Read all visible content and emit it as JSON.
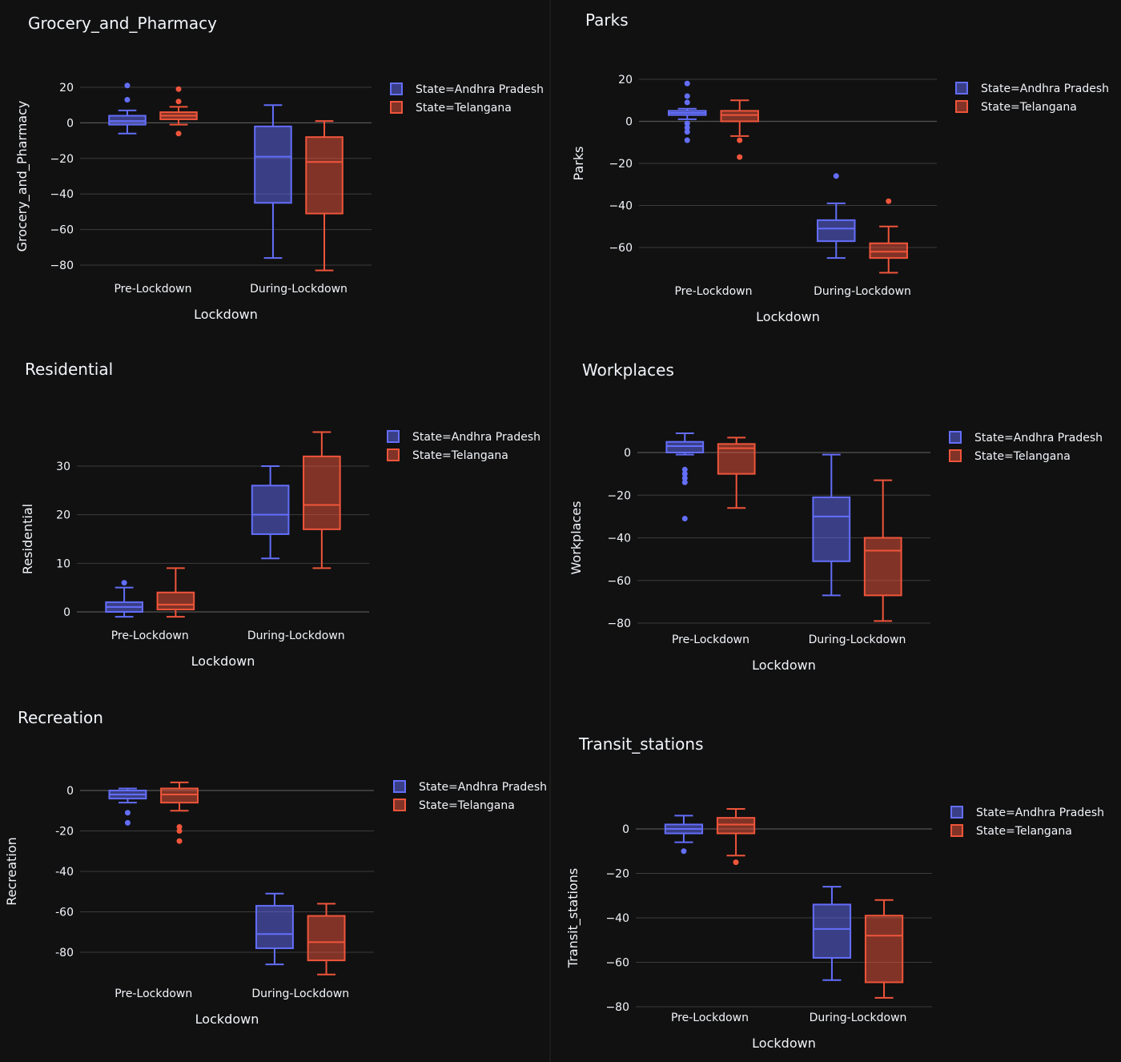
{
  "colors": {
    "background": "#111111",
    "andhra": "#636efa",
    "telangana": "#ef553b",
    "text": "#f2f5fa",
    "grid": "#3c3c3c"
  },
  "legend": [
    "State=Andhra Pradesh",
    "State=Telangana"
  ],
  "chart_data": [
    {
      "type": "box",
      "title": "Grocery_and_Pharmacy",
      "xlabel": "Lockdown",
      "ylabel": "Grocery_and_Pharmacy",
      "categories": [
        "Pre-Lockdown",
        "During-Lockdown"
      ],
      "ylim": [
        -84,
        24
      ],
      "yticks": [
        20,
        0,
        -20,
        -40,
        -60,
        -80
      ],
      "ytick_labels": [
        "20",
        "0",
        "−20",
        "−40",
        "−60",
        "−80"
      ],
      "series": [
        {
          "name": "State=Andhra Pradesh",
          "boxes": [
            {
              "lowerfence": -6,
              "q1": -1,
              "median": 1,
              "q3": 4,
              "upperfence": 7,
              "outliers": [
                13,
                21
              ]
            },
            {
              "lowerfence": -76,
              "q1": -45,
              "median": -19,
              "q3": -2,
              "upperfence": 10,
              "outliers": []
            }
          ]
        },
        {
          "name": "State=Telangana",
          "boxes": [
            {
              "lowerfence": -1,
              "q1": 2,
              "median": 4,
              "q3": 6,
              "upperfence": 9,
              "outliers": [
                -6,
                12,
                19
              ]
            },
            {
              "lowerfence": -83,
              "q1": -51,
              "median": -22,
              "q3": -8,
              "upperfence": 1,
              "outliers": []
            }
          ]
        }
      ]
    },
    {
      "type": "box",
      "title": "Parks",
      "xlabel": "Lockdown",
      "ylabel": "Parks",
      "categories": [
        "Pre-Lockdown",
        "During-Lockdown"
      ],
      "ylim": [
        -73,
        21
      ],
      "yticks": [
        20,
        0,
        -20,
        -40,
        -60
      ],
      "ytick_labels": [
        "20",
        "0",
        "−20",
        "−40",
        "−60"
      ],
      "series": [
        {
          "name": "State=Andhra Pradesh",
          "boxes": [
            {
              "lowerfence": 1,
              "q1": 3,
              "median": 4,
              "q3": 5,
              "upperfence": 6,
              "outliers": [
                18,
                12,
                9,
                -1,
                -3,
                -5,
                -9
              ]
            },
            {
              "lowerfence": -65,
              "q1": -57,
              "median": -51,
              "q3": -47,
              "upperfence": -39,
              "outliers": [
                -26
              ]
            }
          ]
        },
        {
          "name": "State=Telangana",
          "boxes": [
            {
              "lowerfence": -7,
              "q1": 0,
              "median": 3,
              "q3": 5,
              "upperfence": 10,
              "outliers": [
                -9,
                -17
              ]
            },
            {
              "lowerfence": -72,
              "q1": -65,
              "median": -62,
              "q3": -58,
              "upperfence": -50,
              "outliers": [
                -38
              ]
            }
          ]
        }
      ]
    },
    {
      "type": "box",
      "title": "Residential",
      "xlabel": "Lockdown",
      "ylabel": "Residential",
      "categories": [
        "Pre-Lockdown",
        "During-Lockdown"
      ],
      "ylim": [
        -2,
        39
      ],
      "yticks": [
        30,
        20,
        10,
        0
      ],
      "ytick_labels": [
        "30",
        "20",
        "10",
        "0"
      ],
      "series": [
        {
          "name": "State=Andhra Pradesh",
          "boxes": [
            {
              "lowerfence": -1,
              "q1": 0,
              "median": 1,
              "q3": 2,
              "upperfence": 5,
              "outliers": [
                6
              ]
            },
            {
              "lowerfence": 11,
              "q1": 16,
              "median": 20,
              "q3": 26,
              "upperfence": 30,
              "outliers": []
            }
          ]
        },
        {
          "name": "State=Telangana",
          "boxes": [
            {
              "lowerfence": -1,
              "q1": 0.5,
              "median": 1.5,
              "q3": 4,
              "upperfence": 9,
              "outliers": []
            },
            {
              "lowerfence": 9,
              "q1": 17,
              "median": 22,
              "q3": 32,
              "upperfence": 37,
              "outliers": []
            }
          ]
        }
      ]
    },
    {
      "type": "box",
      "title": "Workplaces",
      "xlabel": "Lockdown",
      "ylabel": "Workplaces",
      "categories": [
        "Pre-Lockdown",
        "During-Lockdown"
      ],
      "ylim": [
        -81,
        11
      ],
      "yticks": [
        0,
        -20,
        -40,
        -60,
        -80
      ],
      "ytick_labels": [
        "0",
        "−20",
        "−40",
        "−60",
        "−80"
      ],
      "series": [
        {
          "name": "State=Andhra Pradesh",
          "boxes": [
            {
              "lowerfence": -1,
              "q1": 0,
              "median": 3,
              "q3": 5,
              "upperfence": 9,
              "outliers": [
                -8,
                -10,
                -12,
                -14,
                -31
              ]
            },
            {
              "lowerfence": -67,
              "q1": -51,
              "median": -30,
              "q3": -21,
              "upperfence": -1,
              "outliers": []
            }
          ]
        },
        {
          "name": "State=Telangana",
          "boxes": [
            {
              "lowerfence": -26,
              "q1": -10,
              "median": 2,
              "q3": 4,
              "upperfence": 7,
              "outliers": []
            },
            {
              "lowerfence": -79,
              "q1": -67,
              "median": -46,
              "q3": -40,
              "upperfence": -13,
              "outliers": []
            }
          ]
        }
      ]
    },
    {
      "type": "box",
      "title": "Recreation",
      "xlabel": "Lockdown",
      "ylabel": "Recreation",
      "categories": [
        "Pre-Lockdown",
        "During-Lockdown"
      ],
      "ylim": [
        -93,
        7
      ],
      "yticks": [
        0,
        -20,
        -40,
        -60,
        -80
      ],
      "ytick_labels": [
        "0",
        "-20",
        "-40",
        "-60",
        "-80"
      ],
      "series": [
        {
          "name": "State=Andhra Pradesh",
          "boxes": [
            {
              "lowerfence": -6,
              "q1": -4,
              "median": -2,
              "q3": 0,
              "upperfence": 1,
              "outliers": [
                -11,
                -16
              ]
            },
            {
              "lowerfence": -86,
              "q1": -78,
              "median": -71,
              "q3": -57,
              "upperfence": -51,
              "outliers": []
            }
          ]
        },
        {
          "name": "State=Telangana",
          "boxes": [
            {
              "lowerfence": -10,
              "q1": -6,
              "median": -2,
              "q3": 1,
              "upperfence": 4,
              "outliers": [
                -18,
                -20,
                -25
              ]
            },
            {
              "lowerfence": -91,
              "q1": -84,
              "median": -75,
              "q3": -62,
              "upperfence": -56,
              "outliers": []
            }
          ]
        }
      ]
    },
    {
      "type": "box",
      "title": "Transit_stations",
      "xlabel": "Lockdown",
      "ylabel": "Transit_stations",
      "categories": [
        "Pre-Lockdown",
        "During-Lockdown"
      ],
      "ylim": [
        -81,
        10
      ],
      "yticks": [
        0,
        -20,
        -40,
        -60,
        -80
      ],
      "ytick_labels": [
        "0",
        "−20",
        "−40",
        "−60",
        "−80"
      ],
      "series": [
        {
          "name": "State=Andhra Pradesh",
          "boxes": [
            {
              "lowerfence": -6,
              "q1": -2,
              "median": 0,
              "q3": 2,
              "upperfence": 6,
              "outliers": [
                -10
              ]
            },
            {
              "lowerfence": -68,
              "q1": -58,
              "median": -45,
              "q3": -34,
              "upperfence": -26,
              "outliers": []
            }
          ]
        },
        {
          "name": "State=Telangana",
          "boxes": [
            {
              "lowerfence": -12,
              "q1": -2,
              "median": 2,
              "q3": 5,
              "upperfence": 9,
              "outliers": [
                -15
              ]
            },
            {
              "lowerfence": -76,
              "q1": -69,
              "median": -48,
              "q3": -39,
              "upperfence": -32,
              "outliers": []
            }
          ]
        }
      ]
    }
  ]
}
